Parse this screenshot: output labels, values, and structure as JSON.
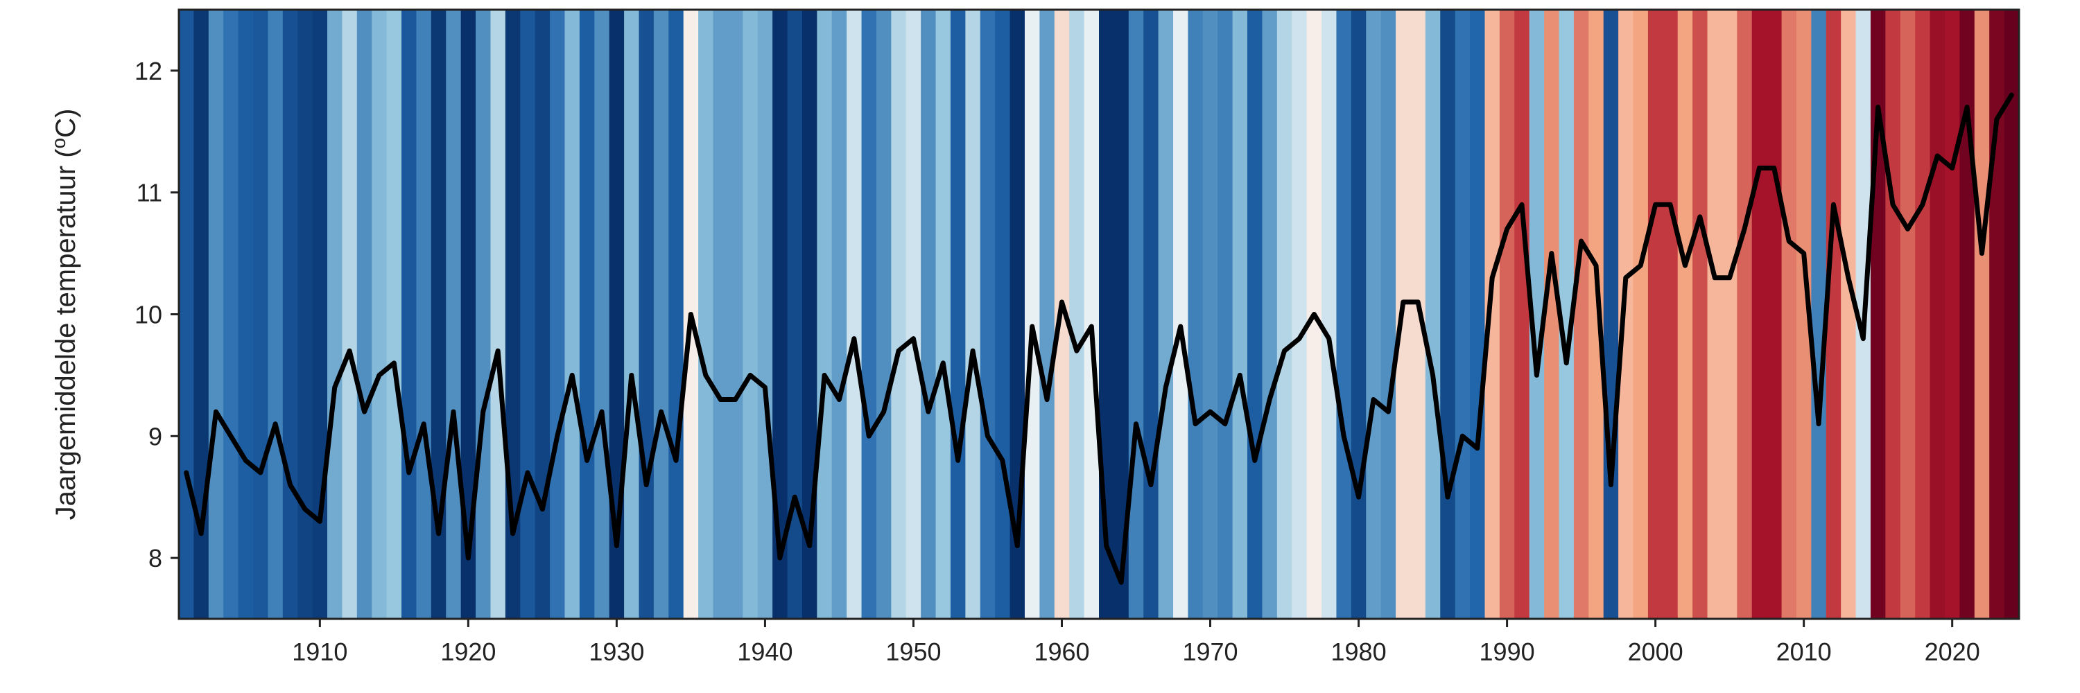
{
  "chart_data": {
    "type": "line",
    "ylabel_main": "Jaargemiddelde temperatuur (",
    "ylabel_sup": "o",
    "ylabel_end": "C)",
    "xlim": [
      1901,
      2024
    ],
    "ylim": [
      7.5,
      12.5
    ],
    "x_ticks": [
      1910,
      1920,
      1930,
      1940,
      1950,
      1960,
      1970,
      1980,
      1990,
      2000,
      2010,
      2020
    ],
    "y_ticks": [
      8,
      9,
      10,
      11,
      12
    ],
    "grid": false,
    "line_color": "#000000",
    "stripe_colors": {
      "darkest_blue": "#08306b",
      "dark_blue": "#2166ac",
      "neutral": "#f7f7f7",
      "dark_red": "#b2182b",
      "darkest_red": "#67001f"
    },
    "x": [
      1901,
      1902,
      1903,
      1904,
      1905,
      1906,
      1907,
      1908,
      1909,
      1910,
      1911,
      1912,
      1913,
      1914,
      1915,
      1916,
      1917,
      1918,
      1919,
      1920,
      1921,
      1922,
      1923,
      1924,
      1925,
      1926,
      1927,
      1928,
      1929,
      1930,
      1931,
      1932,
      1933,
      1934,
      1935,
      1936,
      1937,
      1938,
      1939,
      1940,
      1941,
      1942,
      1943,
      1944,
      1945,
      1946,
      1947,
      1948,
      1949,
      1950,
      1951,
      1952,
      1953,
      1954,
      1955,
      1956,
      1957,
      1958,
      1959,
      1960,
      1961,
      1962,
      1963,
      1964,
      1965,
      1966,
      1967,
      1968,
      1969,
      1970,
      1971,
      1972,
      1973,
      1974,
      1975,
      1976,
      1977,
      1978,
      1979,
      1980,
      1981,
      1982,
      1983,
      1984,
      1985,
      1986,
      1987,
      1988,
      1989,
      1990,
      1991,
      1992,
      1993,
      1994,
      1995,
      1996,
      1997,
      1998,
      1999,
      2000,
      2001,
      2002,
      2003,
      2004,
      2005,
      2006,
      2007,
      2008,
      2009,
      2010,
      2011,
      2012,
      2013,
      2014,
      2015,
      2016,
      2017,
      2018,
      2019,
      2020,
      2021,
      2022,
      2023,
      2024
    ],
    "y": [
      8.7,
      8.2,
      9.2,
      9.0,
      8.8,
      8.7,
      9.1,
      8.6,
      8.4,
      8.3,
      9.4,
      9.7,
      9.2,
      9.5,
      9.6,
      8.7,
      9.1,
      8.2,
      9.2,
      8.0,
      9.2,
      9.7,
      8.2,
      8.7,
      8.4,
      9.0,
      9.5,
      8.8,
      9.2,
      8.1,
      9.5,
      8.6,
      9.2,
      8.8,
      10.0,
      9.5,
      9.3,
      9.3,
      9.5,
      9.4,
      8.0,
      8.5,
      8.1,
      9.5,
      9.3,
      9.8,
      9.0,
      9.2,
      9.7,
      9.8,
      9.2,
      9.6,
      8.8,
      9.7,
      9.0,
      8.8,
      8.1,
      9.9,
      9.3,
      10.1,
      9.7,
      9.9,
      8.1,
      7.8,
      9.1,
      8.6,
      9.4,
      9.9,
      9.1,
      9.2,
      9.1,
      9.5,
      8.8,
      9.3,
      9.7,
      9.8,
      10.0,
      9.8,
      9.0,
      8.5,
      9.3,
      9.2,
      10.1,
      10.1,
      9.5,
      8.5,
      9.0,
      8.9,
      10.3,
      10.7,
      10.9,
      9.5,
      10.5,
      9.6,
      10.6,
      10.4,
      8.6,
      10.3,
      10.4,
      10.9,
      10.9,
      10.4,
      10.8,
      10.3,
      10.3,
      10.7,
      11.2,
      11.2,
      10.6,
      10.5,
      9.1,
      10.9,
      10.3,
      9.8,
      11.7,
      10.9,
      10.7,
      10.9,
      11.3,
      11.2,
      11.7,
      10.5,
      11.6,
      11.8
    ]
  }
}
